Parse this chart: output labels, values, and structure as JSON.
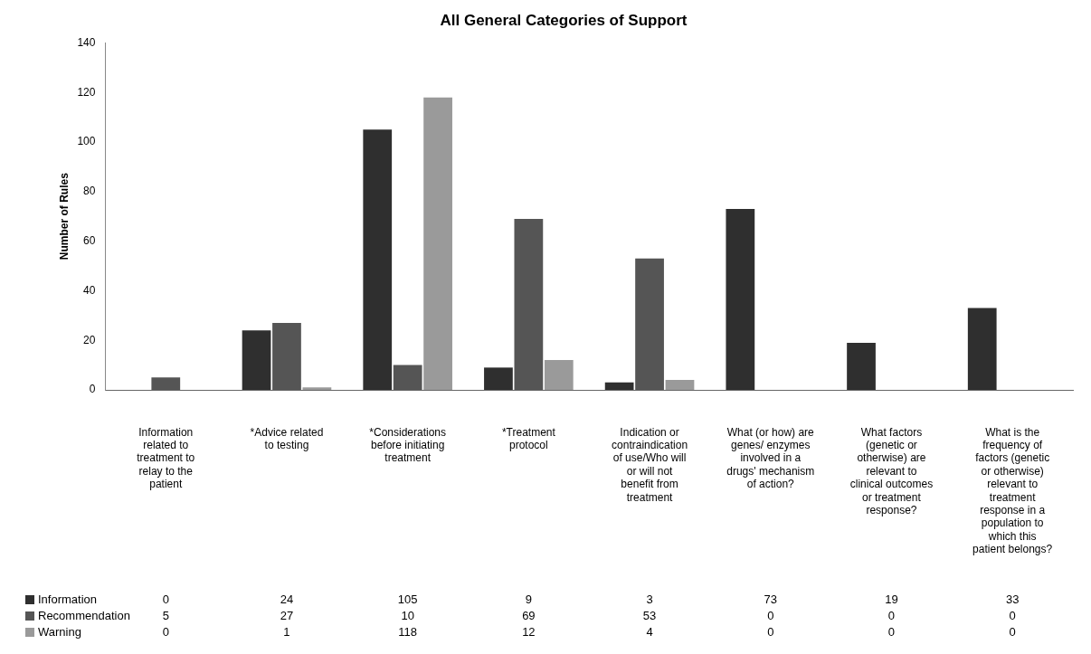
{
  "chart_data": {
    "type": "bar",
    "title": "All General Categories of Support",
    "ylabel": "Number of Rules",
    "categories": [
      "Information related to treatment to relay to the patient",
      "*Advice related to testing",
      "*Considerations before initiating treatment",
      "*Treatment protocol",
      "Indication or contraindication of use/Who will or will not benefit from treatment",
      "What (or how) are genes/ enzymes involved in a drugs' mechanism of action?",
      "What factors (genetic or otherwise) are relevant to clinical outcomes or treatment response?",
      "What is the frequency of factors (genetic or otherwise) relevant to treatment response in a population to which this patient belongs?"
    ],
    "series": [
      {
        "name": "Information",
        "color": "#2f2f2f",
        "values": [
          0,
          24,
          105,
          9,
          3,
          73,
          19,
          33
        ]
      },
      {
        "name": "Recommendation",
        "color": "#555555",
        "values": [
          5,
          27,
          10,
          69,
          53,
          0,
          0,
          0
        ]
      },
      {
        "name": "Warning",
        "color": "#9a9a9a",
        "values": [
          0,
          1,
          118,
          12,
          4,
          0,
          0,
          0
        ]
      }
    ],
    "ylim": [
      0,
      140
    ],
    "yticks": [
      0,
      20,
      40,
      60,
      80,
      100,
      120,
      140
    ],
    "grid": false,
    "legend": "bottom",
    "data_labels": true
  }
}
